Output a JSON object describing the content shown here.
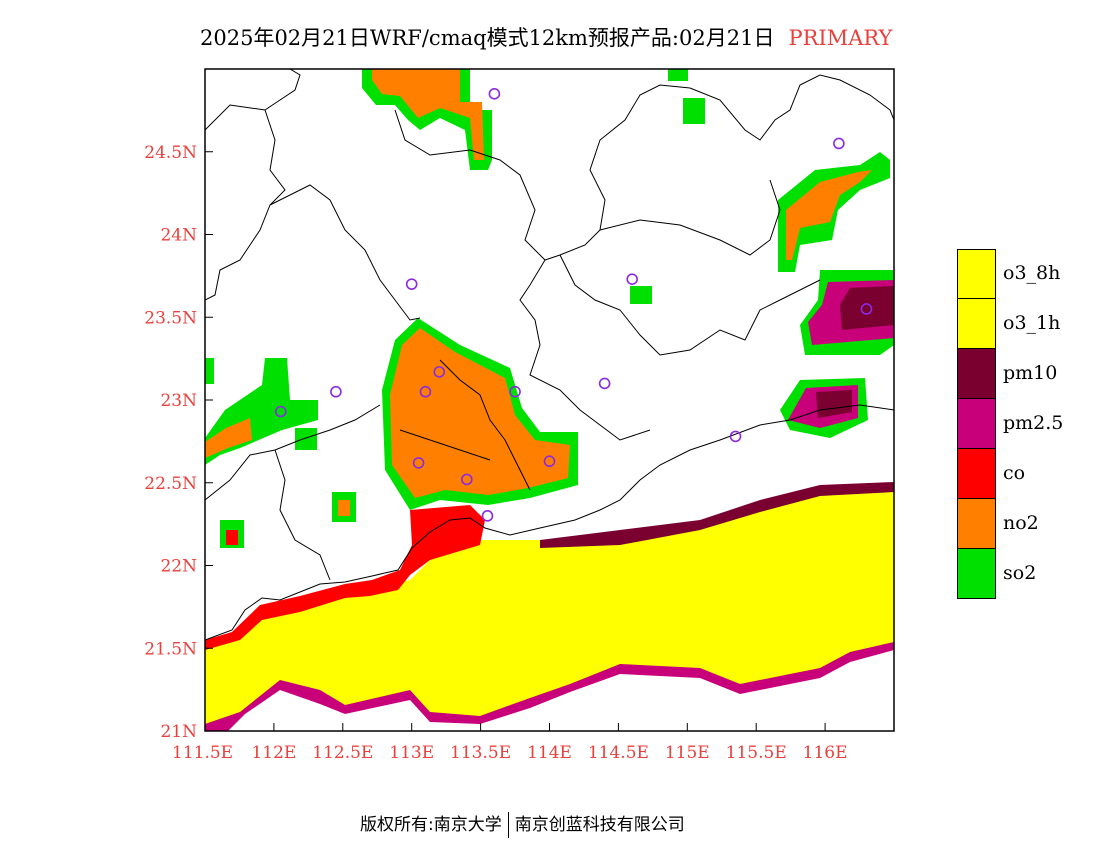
{
  "header": {
    "title": "2025年02月21日WRF/cmaq模式12km预报产品:02月21日",
    "tag": "PRIMARY"
  },
  "footer": {
    "left": "版权所有:南京大学",
    "right": "南京创蓝科技有限公司"
  },
  "axes": {
    "lon_range": [
      111.5,
      116.5
    ],
    "lat_range": [
      21.0,
      25.0
    ],
    "x_ticks": [
      "111.5E",
      "112E",
      "112.5E",
      "113E",
      "113.5E",
      "114E",
      "114.5E",
      "115E",
      "115.5E",
      "116E"
    ],
    "y_ticks": [
      "21N",
      "21.5N",
      "22N",
      "22.5N",
      "23N",
      "23.5N",
      "24N",
      "24.5N"
    ]
  },
  "legend": [
    {
      "label": "o3_8h",
      "color": "#ffff00"
    },
    {
      "label": "o3_1h",
      "color": "#ffff00"
    },
    {
      "label": "pm10",
      "color": "#7a0030"
    },
    {
      "label": "pm2.5",
      "color": "#c8007a"
    },
    {
      "label": "co",
      "color": "#ff0000"
    },
    {
      "label": "no2",
      "color": "#ff8000"
    },
    {
      "label": "so2",
      "color": "#00e000"
    }
  ],
  "stations": [
    {
      "lon": 113.6,
      "lat": 24.85
    },
    {
      "lon": 116.1,
      "lat": 24.55
    },
    {
      "lon": 113.0,
      "lat": 23.7
    },
    {
      "lon": 114.6,
      "lat": 23.73
    },
    {
      "lon": 116.3,
      "lat": 23.55
    },
    {
      "lon": 113.2,
      "lat": 23.17
    },
    {
      "lon": 113.1,
      "lat": 23.05
    },
    {
      "lon": 113.75,
      "lat": 23.05
    },
    {
      "lon": 114.4,
      "lat": 23.1
    },
    {
      "lon": 112.45,
      "lat": 23.05
    },
    {
      "lon": 112.05,
      "lat": 22.93
    },
    {
      "lon": 115.35,
      "lat": 22.78
    },
    {
      "lon": 113.05,
      "lat": 22.62
    },
    {
      "lon": 114.0,
      "lat": 22.63
    },
    {
      "lon": 113.4,
      "lat": 22.52
    },
    {
      "lon": 113.55,
      "lat": 22.3
    }
  ]
}
